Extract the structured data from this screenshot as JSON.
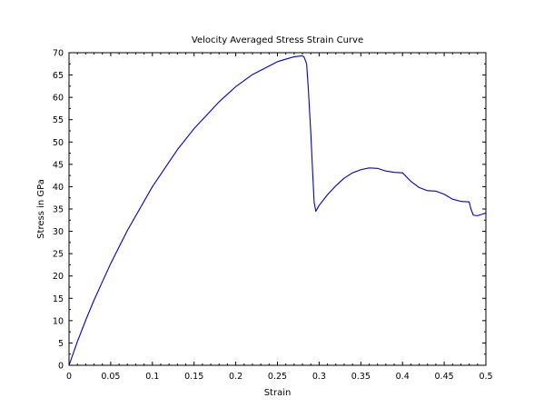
{
  "chart_data": {
    "type": "line",
    "title": "Velocity Averaged Stress Strain Curve",
    "xlabel": "Strain",
    "ylabel": "Stress in GPa",
    "xlim": [
      0,
      0.5
    ],
    "ylim": [
      0,
      70
    ],
    "xticks": [
      "0",
      "0.05",
      "0.1",
      "0.15",
      "0.2",
      "0.25",
      "0.3",
      "0.35",
      "0.4",
      "0.45",
      "0.5"
    ],
    "yticks": [
      "0",
      "5",
      "10",
      "15",
      "20",
      "25",
      "30",
      "35",
      "40",
      "45",
      "50",
      "55",
      "60",
      "65",
      "70"
    ],
    "grid": false,
    "legend": "none",
    "line_color": "#0000cc",
    "series": [
      {
        "x": [
          0,
          0.01,
          0.02,
          0.03,
          0.05,
          0.07,
          0.1,
          0.13,
          0.15,
          0.18,
          0.2,
          0.22,
          0.25,
          0.27,
          0.28,
          0.282,
          0.285,
          0.287,
          0.29,
          0.292,
          0.294,
          0.296,
          0.3,
          0.31,
          0.32,
          0.33,
          0.34,
          0.35,
          0.36,
          0.37,
          0.38,
          0.39,
          0.4,
          0.41,
          0.42,
          0.43,
          0.44,
          0.45,
          0.46,
          0.47,
          0.48,
          0.482,
          0.485,
          0.49,
          0.495,
          0.5
        ],
        "y": [
          0,
          5.3,
          10.1,
          14.6,
          22.8,
          30.2,
          40.0,
          48.3,
          53.0,
          59.0,
          62.4,
          65.1,
          68.0,
          69.1,
          69.3,
          69.0,
          67.5,
          62,
          52,
          44,
          36.5,
          34.5,
          35.8,
          38.2,
          40.2,
          41.9,
          43.1,
          43.8,
          44.2,
          44.1,
          43.5,
          43.2,
          43.1,
          41.2,
          39.8,
          39.1,
          39.0,
          38.3,
          37.2,
          36.7,
          36.6,
          35.0,
          33.6,
          33.5,
          33.8,
          34.1
        ]
      }
    ]
  }
}
